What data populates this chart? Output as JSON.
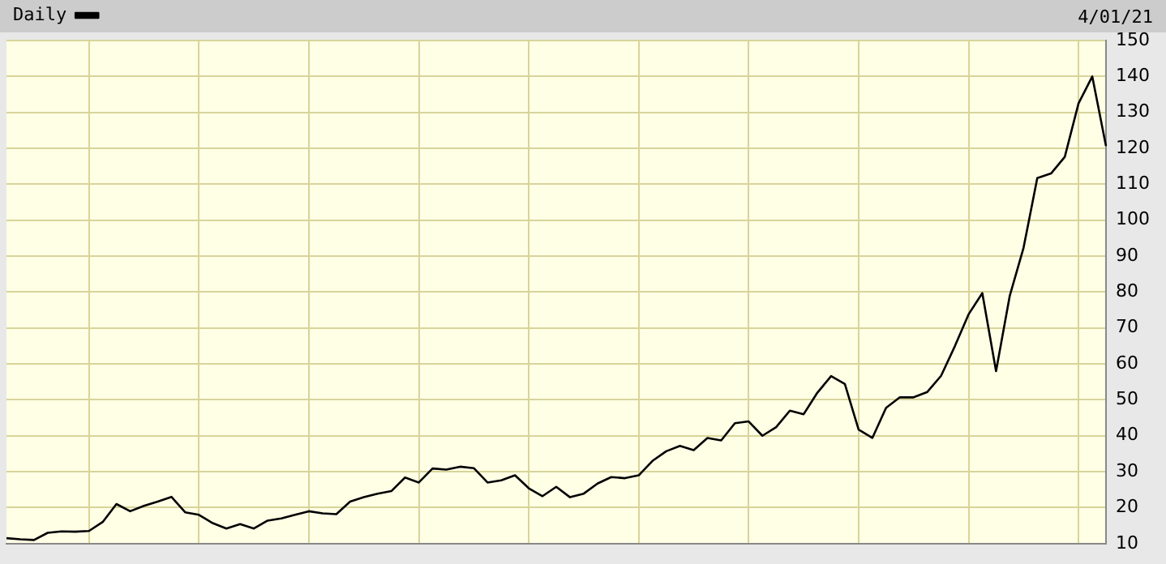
{
  "chart_data": {
    "type": "line",
    "categories": [
      null,
      null,
      null,
      null,
      null,
      null,
      null,
      null,
      null,
      null,
      null,
      null,
      null,
      null,
      null,
      null,
      null,
      null,
      null,
      null,
      null,
      null,
      null,
      null,
      null,
      null,
      null,
      null,
      null,
      null,
      null,
      null,
      null,
      null,
      null,
      null,
      null,
      null,
      null,
      null,
      null,
      null,
      null,
      null,
      null,
      null,
      null,
      null,
      null,
      null,
      null,
      null,
      null,
      null,
      null,
      null,
      null,
      null,
      null,
      null,
      null,
      null,
      null,
      null,
      null,
      null,
      null,
      null,
      null,
      null,
      null,
      null,
      null,
      null,
      null,
      null,
      null,
      null,
      null,
      null,
      null
    ],
    "series": [
      {
        "name": "Daily",
        "color": "#000000",
        "values": [
          11.5,
          11.2,
          11,
          13,
          13.4,
          13.3,
          13.5,
          16,
          21,
          19,
          20.5,
          21.7,
          23,
          18.7,
          18,
          15.7,
          14.2,
          15.4,
          14.2,
          16.4,
          17,
          18,
          19,
          18.4,
          18.2,
          21.7,
          22.9,
          23.9,
          24.6,
          28.4,
          27,
          30.9,
          30.6,
          31.4,
          31,
          27,
          27.6,
          29,
          25.4,
          23.2,
          25.8,
          22.9,
          23.9,
          26.7,
          28.5,
          28.2,
          29,
          33,
          35.7,
          37.2,
          36,
          39.4,
          38.7,
          43.5,
          44,
          40,
          42.4,
          47,
          46,
          52,
          56.6,
          54.4,
          41.7,
          39.4,
          47.8,
          50.7,
          50.7,
          52.2,
          56.7,
          64.9,
          73.8,
          79.7,
          58,
          79,
          92.3,
          111.7,
          113,
          117.6,
          132.5,
          140,
          120.6
        ]
      }
    ],
    "ylim": [
      10,
      150
    ],
    "yticks": [
      10,
      20,
      30,
      40,
      50,
      60,
      70,
      80,
      90,
      100,
      110,
      120,
      130,
      140,
      150
    ],
    "grid": true,
    "legend": "top left",
    "marker": "none",
    "line_style": "solid",
    "tick_labels": "y",
    "annotations": [
      "4/01/21"
    ]
  }
}
